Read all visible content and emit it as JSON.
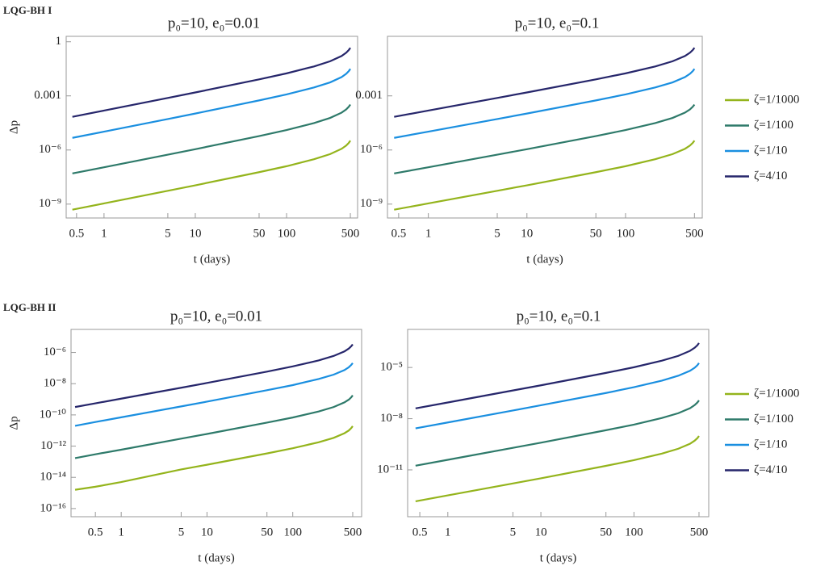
{
  "row_labels": [
    "LQG-BH I",
    "LQG-BH II"
  ],
  "chart_data": [
    {
      "type": "line",
      "title": "p₀=10, e₀=0.01",
      "xlabel": "t (days)",
      "ylabel": "Δp",
      "xscale": "log",
      "yscale": "log",
      "xlim": [
        0.385,
        600
      ],
      "ylim": [
        1.7e-10,
        2
      ],
      "xticks": [
        0.5,
        1,
        5,
        10,
        50,
        100,
        500
      ],
      "yticks": [
        {
          "value": 1e-09,
          "label": "10⁻⁹"
        },
        {
          "value": 1e-06,
          "label": "10⁻⁶"
        },
        0.001,
        1
      ],
      "x": [
        0.45,
        1,
        5,
        10,
        50,
        100,
        200,
        300,
        400,
        450,
        480,
        500
      ],
      "series": [
        {
          "color": "#94b41c",
          "values": [
            4.9e-10,
            1.09e-09,
            5.5e-09,
            1.1e-08,
            5.9e-08,
            1.26e-07,
            3.1e-07,
            5.9e-07,
            1.16e-06,
            1.76e-06,
            2.46e-06,
            3.3e-06
          ]
        },
        {
          "color": "#2e7a6a",
          "values": [
            5e-08,
            1.1e-07,
            5.5e-07,
            1.11e-06,
            5.9e-06,
            1.28e-05,
            3.1e-05,
            6e-05,
            0.000117,
            0.000178,
            0.000248,
            0.00033
          ]
        },
        {
          "color": "#1a8fe0",
          "values": [
            4.7e-06,
            1.04e-05,
            5.2e-05,
            0.000105,
            0.00056,
            0.00121,
            0.00292,
            0.0056,
            0.011,
            0.0168,
            0.0234,
            0.0314
          ]
        },
        {
          "color": "#26266b",
          "values": [
            6.9e-05,
            0.000153,
            0.00077,
            0.00155,
            0.0082,
            0.0177,
            0.043,
            0.083,
            0.162,
            0.247,
            0.345,
            0.462
          ]
        }
      ]
    },
    {
      "type": "line",
      "title": "p₀=10, e₀=0.1",
      "xlabel": "t (days)",
      "xscale": "log",
      "yscale": "log",
      "legend": "right",
      "xlim": [
        0.385,
        600
      ],
      "ylim": [
        1.7e-10,
        2
      ],
      "xticks": [
        0.5,
        1,
        5,
        10,
        50,
        100,
        500
      ],
      "yticks": [
        {
          "value": 1e-09,
          "label": "10⁻⁹"
        },
        {
          "value": 1e-06,
          "label": "10⁻⁶"
        },
        0.001
      ],
      "x": [
        0.45,
        1,
        5,
        10,
        50,
        100,
        200,
        300,
        400,
        450,
        480,
        500
      ],
      "series": [
        {
          "name": "ζ=1/1000",
          "color": "#94b41c",
          "values": [
            4.9e-10,
            1.09e-09,
            5.5e-09,
            1.1e-08,
            5.9e-08,
            1.26e-07,
            3.1e-07,
            5.9e-07,
            1.16e-06,
            1.76e-06,
            2.46e-06,
            3.3e-06
          ]
        },
        {
          "name": "ζ=1/100",
          "color": "#2e7a6a",
          "values": [
            5e-08,
            1.1e-07,
            5.5e-07,
            1.11e-06,
            5.9e-06,
            1.28e-05,
            3.1e-05,
            6e-05,
            0.000117,
            0.000178,
            0.000248,
            0.00033
          ]
        },
        {
          "name": "ζ=1/10",
          "color": "#1a8fe0",
          "values": [
            4.7e-06,
            1.04e-05,
            5.2e-05,
            0.000105,
            0.00056,
            0.00121,
            0.00292,
            0.0056,
            0.011,
            0.0168,
            0.0234,
            0.0314
          ]
        },
        {
          "name": "ζ=4/10",
          "color": "#26266b",
          "values": [
            6.9e-05,
            0.000153,
            0.00077,
            0.00155,
            0.0082,
            0.0177,
            0.043,
            0.083,
            0.162,
            0.247,
            0.345,
            0.462
          ]
        }
      ]
    },
    {
      "type": "line",
      "title": "p₀=10, e₀=0.01",
      "xlabel": "t (days)",
      "ylabel": "Δp",
      "xscale": "log",
      "yscale": "log",
      "xlim": [
        0.26,
        635
      ],
      "ylim": [
        3e-17,
        3e-05
      ],
      "xticks": [
        0.5,
        1,
        5,
        10,
        50,
        100,
        500
      ],
      "yticks": [
        {
          "value": 1e-16,
          "label": "10⁻¹⁶"
        },
        {
          "value": 1e-14,
          "label": "10⁻¹⁴"
        },
        {
          "value": 1e-12,
          "label": "10⁻¹²"
        },
        {
          "value": 1e-10,
          "label": "10⁻¹⁰"
        },
        {
          "value": 1e-08,
          "label": "10⁻⁸"
        },
        {
          "value": 1e-06,
          "label": "10⁻⁶"
        }
      ],
      "x": [
        0.29,
        0.5,
        1,
        5,
        10,
        50,
        100,
        200,
        300,
        400,
        450,
        480,
        500
      ],
      "series": [
        {
          "color": "#94b41c",
          "values": [
            1.6e-15,
            2.5e-15,
            5e-15,
            3.2e-14,
            6.4e-14,
            3.4e-13,
            7.3e-13,
            1.77e-12,
            3.4e-12,
            6.7e-12,
            1e-11,
            1.42e-11,
            1.9e-11
          ]
        },
        {
          "color": "#2e7a6a",
          "values": [
            1.7e-13,
            3e-13,
            5.9e-13,
            3e-12,
            6e-12,
            3.2e-11,
            6.8e-11,
            1.66e-10,
            3.2e-10,
            6.3e-10,
            9.5e-10,
            1.33e-09,
            1.78e-09
          ]
        },
        {
          "color": "#1a8fe0",
          "values": [
            2e-11,
            3.5e-11,
            7e-11,
            3.5e-10,
            7.1e-10,
            3.8e-09,
            8.1e-09,
            2e-08,
            3.8e-08,
            7.4e-08,
            1.13e-07,
            1.58e-07,
            2.1e-07
          ]
        },
        {
          "color": "#26266b",
          "values": [
            3.2e-10,
            5.5e-10,
            1.1e-09,
            5.5e-09,
            1.11e-08,
            5.9e-08,
            1.28e-07,
            3.1e-07,
            6e-07,
            1.17e-06,
            1.78e-06,
            2.48e-06,
            3.3e-06
          ]
        }
      ]
    },
    {
      "type": "line",
      "title": "p₀=10, e₀=0.1",
      "xlabel": "t (days)",
      "xscale": "log",
      "yscale": "log",
      "legend": "right",
      "xlim": [
        0.37,
        636
      ],
      "ylim": [
        1.8e-14,
        0.0017
      ],
      "xticks": [
        0.5,
        1,
        5,
        10,
        50,
        100,
        500
      ],
      "yticks": [
        {
          "value": 1e-11,
          "label": "10⁻¹¹"
        },
        {
          "value": 1e-08,
          "label": "10⁻⁸"
        },
        {
          "value": 1e-05,
          "label": "10⁻⁵"
        }
      ],
      "x": [
        0.45,
        1,
        5,
        10,
        50,
        100,
        200,
        300,
        400,
        450,
        480,
        500
      ],
      "series": [
        {
          "name": "ζ=1/1000",
          "color": "#94b41c",
          "values": [
            1.44e-13,
            3.2e-13,
            1.6e-12,
            3.2e-12,
            1.72e-11,
            3.7e-11,
            9e-11,
            1.74e-10,
            3.4e-10,
            5.2e-10,
            7.2e-10,
            9.7e-10
          ]
        },
        {
          "name": "ζ=1/100",
          "color": "#2e7a6a",
          "values": [
            1.75e-11,
            3.9e-11,
            1.96e-10,
            3.9e-10,
            2.1e-09,
            4.5e-09,
            1.1e-08,
            2.1e-08,
            4.1e-08,
            6.3e-08,
            8.8e-08,
            1.18e-07
          ]
        },
        {
          "name": "ζ=1/10",
          "color": "#1a8fe0",
          "values": [
            2.7e-09,
            6e-09,
            3e-08,
            6.1e-08,
            3.2e-07,
            7e-07,
            1.69e-06,
            3.3e-06,
            6.4e-06,
            9.7e-06,
            1.35e-05,
            1.81e-05
          ]
        },
        {
          "name": "ζ=4/10",
          "color": "#26266b",
          "values": [
            4e-08,
            8.9e-08,
            4.5e-07,
            9e-07,
            4.8e-06,
            1.03e-05,
            2.5e-05,
            4.8e-05,
            9.4e-05,
            0.000144,
            0.0002,
            0.00027
          ]
        }
      ]
    }
  ]
}
